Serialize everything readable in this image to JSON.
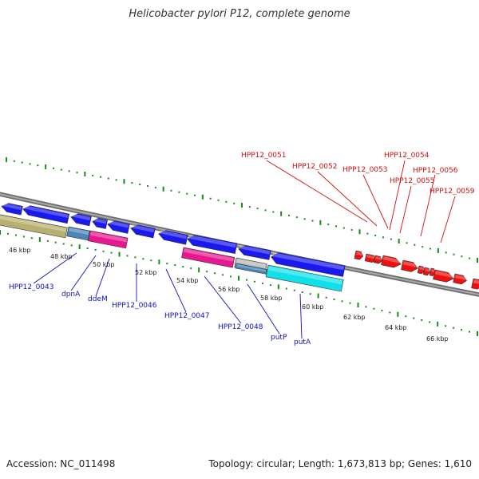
{
  "title": "Helicobacter pylori P12, complete genome",
  "footer": {
    "accession": "Accession: NC_011498",
    "summary": "Topology: circular; Length: 1,673,813 bp; Genes: 1,610"
  },
  "colors": {
    "backbone": "#808080",
    "tick": "#1a8a1a",
    "label_forward": "#d01010",
    "label_reverse": "#1010c0",
    "gene_blue": "#1a1aee",
    "gene_red": "#ee1010",
    "gene_olive": "#b8b070",
    "gene_steel": "#4a86b8",
    "gene_magenta": "#e81890",
    "gene_grey": "#b8b8b8",
    "gene_cyan": "#10e0e8"
  },
  "scale_labels": [
    "46 kbp",
    "48 kbp",
    "50 kbp",
    "52 kbp",
    "54 kbp",
    "56 kbp",
    "58 kbp",
    "60 kbp",
    "62 kbp",
    "64 kbp",
    "66 kbp"
  ],
  "forward_labels": [
    "HPP12_0051",
    "HPP12_0052",
    "HPP12_0053",
    "HPP12_0054",
    "HPP12_0055",
    "HPP12_0056",
    "HPP12_0059"
  ],
  "reverse_labels": [
    "HPP12_0043",
    "dpnA",
    "ddeM",
    "HPP12_0046",
    "HPP12_0047",
    "HPP12_0048",
    "putP",
    "putA"
  ],
  "icons": [
    "genome-backbone-arc",
    "gene-arrow"
  ]
}
